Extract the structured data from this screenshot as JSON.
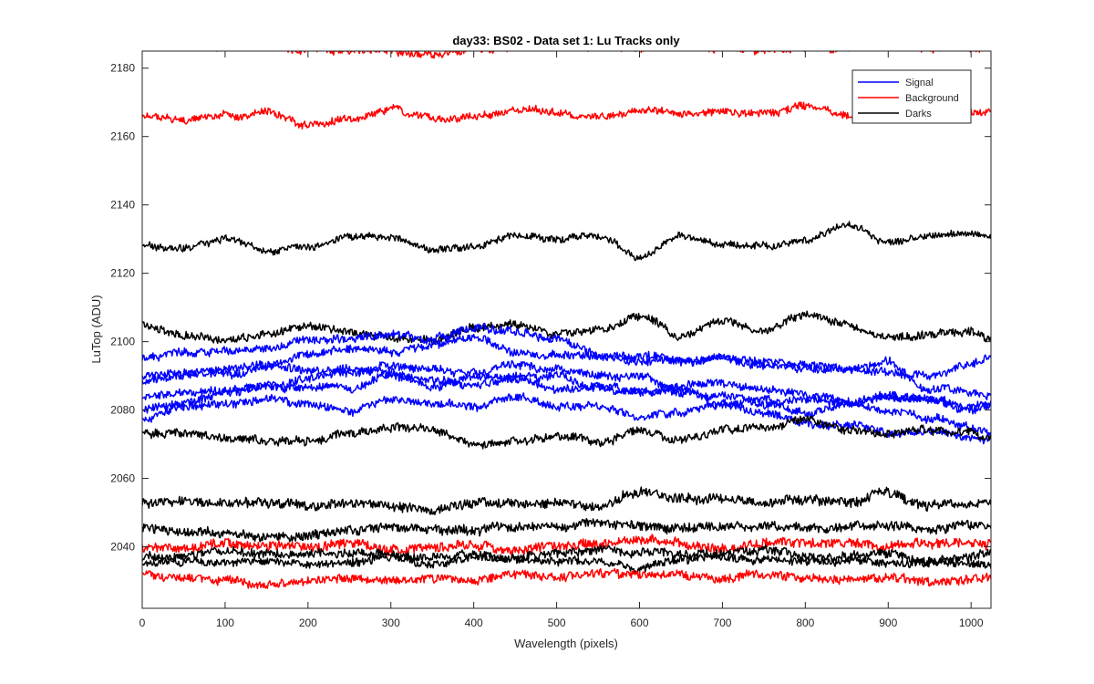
{
  "chart_data": {
    "type": "line",
    "title": "day33: BS02 - Data set 1: Lu Tracks only",
    "xlabel": "Wavelength (pixels)",
    "ylabel": "LuTop (ADU)",
    "xlim": [
      0,
      1024
    ],
    "ylim": [
      2022,
      2185
    ],
    "x_ticks": [
      0,
      100,
      200,
      300,
      400,
      500,
      600,
      700,
      800,
      900,
      1000
    ],
    "y_ticks": [
      2040,
      2060,
      2080,
      2100,
      2120,
      2140,
      2160,
      2180
    ],
    "grid": false,
    "legend_location": "top-right",
    "legend": [
      {
        "name": "Signal",
        "color": "#0000ff"
      },
      {
        "name": "Background",
        "color": "#ff0000"
      },
      {
        "name": "Darks",
        "color": "#000000"
      }
    ],
    "series_style": {
      "Signal": "#0000ff",
      "Background": "#ff0000",
      "Darks": "#000000"
    },
    "x": [
      0,
      50,
      100,
      150,
      200,
      250,
      300,
      350,
      400,
      450,
      500,
      550,
      600,
      650,
      700,
      750,
      800,
      850,
      900,
      950,
      1000,
      1024
    ],
    "series": [
      {
        "name": "Background",
        "group": "Background",
        "noise": 1.0,
        "values": [
          2186,
          2187,
          2186,
          2186,
          2186,
          2185,
          2185,
          2184,
          2186,
          2186,
          2187,
          2186,
          2186,
          2187,
          2186,
          2185,
          2186,
          2186,
          2187,
          2186,
          2186,
          2186
        ]
      },
      {
        "name": "Background",
        "group": "Background",
        "noise": 0.9,
        "values": [
          2166,
          2165,
          2166,
          2167,
          2163,
          2165,
          2168,
          2165,
          2166,
          2168,
          2167,
          2166,
          2167,
          2167,
          2167,
          2167,
          2169,
          2166,
          2167,
          2168,
          2167,
          2167
        ]
      },
      {
        "name": "Darks",
        "group": "Darks",
        "noise": 0.8,
        "values": [
          2128,
          2127,
          2130,
          2127,
          2128,
          2131,
          2131,
          2127,
          2128,
          2131,
          2130,
          2131,
          2125,
          2131,
          2128,
          2128,
          2130,
          2134,
          2129,
          2131,
          2132,
          2131
        ]
      },
      {
        "name": "Darks",
        "group": "Darks",
        "noise": 1.0,
        "values": [
          2105,
          2102,
          2101,
          2102,
          2105,
          2103,
          2101,
          2100,
          2104,
          2105,
          2102,
          2104,
          2107,
          2102,
          2106,
          2103,
          2108,
          2105,
          2101,
          2102,
          2103,
          2101
        ]
      },
      {
        "name": "Signal",
        "group": "Signal",
        "noise": 1.0,
        "values": [
          2095,
          2097,
          2097,
          2098,
          2101,
          2101,
          2102,
          2101,
          2104,
          2103,
          2101,
          2096,
          2096,
          2094,
          2095,
          2094,
          2093,
          2092,
          2091,
          2090,
          2093,
          2096
        ]
      },
      {
        "name": "Signal",
        "group": "Signal",
        "noise": 1.0,
        "values": [
          2090,
          2091,
          2092,
          2093,
          2096,
          2098,
          2097,
          2099,
          2101,
          2097,
          2096,
          2096,
          2094,
          2094,
          2095,
          2093,
          2092,
          2092,
          2094,
          2086,
          2085,
          2084
        ]
      },
      {
        "name": "Signal",
        "group": "Signal",
        "noise": 1.0,
        "values": [
          2088,
          2090,
          2090,
          2093,
          2092,
          2091,
          2093,
          2092,
          2091,
          2093,
          2092,
          2090,
          2090,
          2085,
          2084,
          2082,
          2083,
          2082,
          2084,
          2083,
          2081,
          2082
        ]
      },
      {
        "name": "Signal",
        "group": "Signal",
        "noise": 1.0,
        "values": [
          2084,
          2085,
          2086,
          2087,
          2089,
          2092,
          2091,
          2087,
          2090,
          2089,
          2090,
          2086,
          2085,
          2086,
          2081,
          2083,
          2079,
          2082,
          2080,
          2078,
          2075,
          2073
        ]
      },
      {
        "name": "Signal",
        "group": "Signal",
        "noise": 1.0,
        "values": [
          2080,
          2082,
          2085,
          2087,
          2087,
          2086,
          2090,
          2089,
          2087,
          2090,
          2086,
          2087,
          2085,
          2087,
          2088,
          2086,
          2085,
          2083,
          2084,
          2083,
          2080,
          2081
        ]
      },
      {
        "name": "Signal",
        "group": "Signal",
        "noise": 1.0,
        "values": [
          2077,
          2081,
          2082,
          2083,
          2082,
          2080,
          2083,
          2082,
          2081,
          2084,
          2081,
          2081,
          2078,
          2079,
          2082,
          2079,
          2076,
          2076,
          2073,
          2074,
          2072,
          2071
        ]
      },
      {
        "name": "Darks",
        "group": "Darks",
        "noise": 1.0,
        "values": [
          2073,
          2073,
          2072,
          2071,
          2071,
          2073,
          2075,
          2074,
          2070,
          2071,
          2072,
          2071,
          2074,
          2071,
          2074,
          2075,
          2077,
          2074,
          2073,
          2074,
          2073,
          2071
        ]
      },
      {
        "name": "Darks",
        "group": "Darks",
        "noise": 1.2,
        "values": [
          2053,
          2053,
          2053,
          2053,
          2052,
          2053,
          2052,
          2051,
          2053,
          2053,
          2053,
          2052,
          2056,
          2054,
          2054,
          2053,
          2054,
          2053,
          2056,
          2052,
          2053,
          2053
        ]
      },
      {
        "name": "Darks",
        "group": "Darks",
        "noise": 1.1,
        "values": [
          2046,
          2044,
          2044,
          2043,
          2043,
          2045,
          2046,
          2045,
          2045,
          2046,
          2046,
          2047,
          2046,
          2045,
          2046,
          2046,
          2046,
          2046,
          2046,
          2045,
          2046,
          2046
        ]
      },
      {
        "name": "Background",
        "group": "Background",
        "noise": 1.2,
        "values": [
          2040,
          2040,
          2041,
          2040,
          2040,
          2041,
          2039,
          2040,
          2040,
          2039,
          2040,
          2041,
          2042,
          2041,
          2040,
          2041,
          2041,
          2041,
          2040,
          2041,
          2041,
          2041
        ]
      },
      {
        "name": "Darks",
        "group": "Darks",
        "noise": 1.1,
        "values": [
          2037,
          2037,
          2039,
          2038,
          2038,
          2038,
          2038,
          2037,
          2038,
          2037,
          2038,
          2039,
          2038,
          2038,
          2038,
          2039,
          2037,
          2037,
          2038,
          2036,
          2037,
          2038
        ]
      },
      {
        "name": "Darks",
        "group": "Darks",
        "noise": 1.0,
        "values": [
          2035,
          2036,
          2035,
          2036,
          2035,
          2035,
          2037,
          2035,
          2037,
          2036,
          2036,
          2036,
          2034,
          2036,
          2037,
          2036,
          2036,
          2036,
          2035,
          2035,
          2035,
          2035
        ]
      },
      {
        "name": "Background",
        "group": "Background",
        "noise": 1.1,
        "values": [
          2032,
          2031,
          2030,
          2029,
          2030,
          2031,
          2030,
          2031,
          2030,
          2032,
          2031,
          2032,
          2032,
          2032,
          2031,
          2032,
          2031,
          2030,
          2031,
          2030,
          2030,
          2031
        ]
      }
    ]
  }
}
